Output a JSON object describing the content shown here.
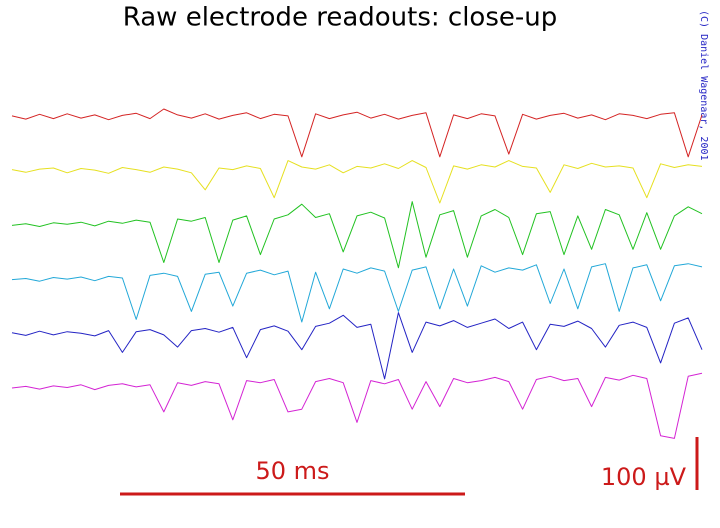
{
  "chart_data": {
    "type": "line",
    "title": "Raw electrode readouts: close-up",
    "credit": "(C) Daniel Wagenaar, 2001",
    "x": [
      0,
      2,
      4,
      6,
      8,
      10,
      12,
      14,
      16,
      18,
      20,
      22,
      24,
      26,
      28,
      30,
      32,
      34,
      36,
      38,
      40,
      42,
      44,
      46,
      48,
      50,
      52,
      54,
      56,
      58,
      60,
      62,
      64,
      66,
      68,
      70,
      72,
      74,
      76,
      78,
      80,
      82,
      84,
      86,
      88,
      90,
      92,
      94,
      96,
      98,
      100
    ],
    "xlim": [
      0,
      100
    ],
    "series": [
      {
        "color": "#d42424",
        "values": [
          2,
          -4,
          5,
          -3,
          6,
          -2,
          4,
          -5,
          3,
          7,
          -3,
          15,
          4,
          -2,
          6,
          -4,
          3,
          8,
          -3,
          5,
          2,
          -75,
          6,
          -3,
          4,
          9,
          -2,
          5,
          -4,
          3,
          8,
          -75,
          4,
          -3,
          6,
          2,
          -70,
          5,
          -4,
          3,
          7,
          -2,
          4,
          -5,
          6,
          3,
          -3,
          5,
          8,
          -75,
          4
        ]
      },
      {
        "color": "#e6e020",
        "values": [
          3,
          -2,
          4,
          6,
          -3,
          5,
          2,
          -4,
          7,
          3,
          -2,
          8,
          4,
          -3,
          -35,
          6,
          3,
          10,
          5,
          -50,
          20,
          8,
          4,
          12,
          -3,
          9,
          6,
          14,
          5,
          20,
          7,
          -60,
          10,
          4,
          12,
          8,
          20,
          9,
          6,
          -40,
          12,
          5,
          15,
          8,
          10,
          6,
          -50,
          14,
          7,
          12,
          9
        ]
      },
      {
        "color": "#22c222",
        "values": [
          0,
          3,
          -2,
          5,
          2,
          6,
          -1,
          8,
          4,
          10,
          6,
          -70,
          12,
          8,
          15,
          -70,
          10,
          18,
          -55,
          12,
          20,
          40,
          15,
          22,
          -50,
          18,
          25,
          14,
          -80,
          45,
          -60,
          20,
          28,
          -60,
          18,
          30,
          15,
          -55,
          22,
          26,
          -55,
          18,
          -45,
          30,
          20,
          -45,
          24,
          -45,
          18,
          35,
          22
        ]
      },
      {
        "color": "#22a8d8",
        "values": [
          0,
          2,
          -3,
          4,
          1,
          5,
          -2,
          6,
          3,
          -75,
          8,
          12,
          6,
          -60,
          10,
          14,
          -50,
          12,
          18,
          9,
          16,
          -80,
          14,
          -55,
          20,
          12,
          22,
          16,
          -60,
          18,
          24,
          -55,
          20,
          -50,
          26,
          14,
          22,
          18,
          28,
          -45,
          20,
          -55,
          24,
          30,
          -60,
          22,
          28,
          -40,
          26,
          30,
          24
        ]
      },
      {
        "color": "#2424c4",
        "values": [
          2,
          -3,
          5,
          -2,
          4,
          1,
          -4,
          6,
          -35,
          4,
          8,
          -2,
          -25,
          6,
          10,
          3,
          12,
          -45,
          8,
          15,
          5,
          -30,
          14,
          20,
          35,
          12,
          18,
          -85,
          40,
          -35,
          22,
          15,
          25,
          12,
          20,
          28,
          10,
          22,
          -30,
          18,
          14,
          24,
          10,
          -25,
          16,
          22,
          12,
          -55,
          20,
          30,
          -30
        ]
      },
      {
        "color": "#d424d4",
        "values": [
          0,
          3,
          -2,
          4,
          1,
          6,
          -3,
          5,
          8,
          2,
          6,
          -45,
          10,
          5,
          12,
          8,
          -60,
          14,
          10,
          16,
          -45,
          -40,
          12,
          18,
          10,
          -65,
          14,
          8,
          16,
          -40,
          12,
          -35,
          18,
          10,
          14,
          20,
          12,
          -40,
          16,
          22,
          14,
          18,
          -35,
          20,
          15,
          24,
          18,
          -90,
          -95,
          22,
          28
        ]
      }
    ],
    "scalebars": {
      "x": {
        "value": 50,
        "label": "50 ms"
      },
      "y": {
        "value": 100,
        "label": "100 µV"
      }
    }
  }
}
